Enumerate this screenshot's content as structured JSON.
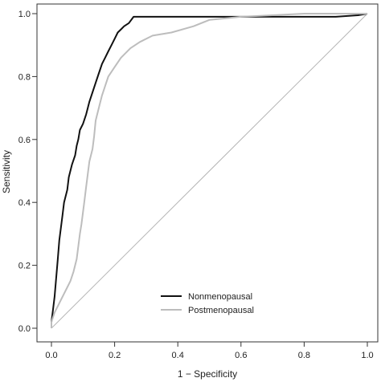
{
  "chart_data": {
    "type": "line",
    "title": "",
    "xlabel": "1 − Specificity",
    "ylabel": "Sensitivity",
    "xlim": [
      0,
      1
    ],
    "ylim": [
      0,
      1
    ],
    "x_ticks": [
      0.0,
      0.2,
      0.4,
      0.6,
      0.8,
      1.0
    ],
    "x_tick_labels": [
      "0.0",
      "0.2",
      "0.4",
      "0.6",
      "0.8",
      "1.0"
    ],
    "y_ticks": [
      0.0,
      0.2,
      0.4,
      0.6,
      0.8,
      1.0
    ],
    "y_tick_labels": [
      "0.0",
      "0.2",
      "0.4",
      "0.6",
      "0.8",
      "1.0"
    ],
    "grid": false,
    "legend_position": "bottom-center",
    "reference_line": {
      "from": [
        0,
        0
      ],
      "to": [
        1,
        1
      ],
      "color": "#b5b5b5"
    },
    "series": [
      {
        "name": "Nonmenopausal",
        "color": "#111111",
        "points": [
          [
            0.0,
            0.0
          ],
          [
            0.0,
            0.02
          ],
          [
            0.005,
            0.06
          ],
          [
            0.01,
            0.1
          ],
          [
            0.015,
            0.16
          ],
          [
            0.02,
            0.22
          ],
          [
            0.025,
            0.28
          ],
          [
            0.03,
            0.32
          ],
          [
            0.035,
            0.36
          ],
          [
            0.04,
            0.4
          ],
          [
            0.05,
            0.44
          ],
          [
            0.055,
            0.48
          ],
          [
            0.065,
            0.52
          ],
          [
            0.075,
            0.55
          ],
          [
            0.08,
            0.58
          ],
          [
            0.085,
            0.6
          ],
          [
            0.09,
            0.63
          ],
          [
            0.1,
            0.65
          ],
          [
            0.11,
            0.68
          ],
          [
            0.115,
            0.7
          ],
          [
            0.12,
            0.72
          ],
          [
            0.13,
            0.75
          ],
          [
            0.14,
            0.78
          ],
          [
            0.15,
            0.81
          ],
          [
            0.16,
            0.84
          ],
          [
            0.17,
            0.86
          ],
          [
            0.18,
            0.88
          ],
          [
            0.19,
            0.9
          ],
          [
            0.2,
            0.92
          ],
          [
            0.21,
            0.94
          ],
          [
            0.22,
            0.95
          ],
          [
            0.23,
            0.96
          ],
          [
            0.245,
            0.97
          ],
          [
            0.26,
            0.99
          ],
          [
            0.27,
            0.99
          ],
          [
            0.3,
            0.99
          ],
          [
            0.5,
            0.99
          ],
          [
            0.7,
            0.99
          ],
          [
            0.9,
            0.99
          ],
          [
            0.97,
            0.995
          ],
          [
            1.0,
            1.0
          ]
        ]
      },
      {
        "name": "Postmenopausal",
        "color": "#bdbdbd",
        "points": [
          [
            0.0,
            0.0
          ],
          [
            0.0,
            0.02
          ],
          [
            0.01,
            0.05
          ],
          [
            0.02,
            0.07
          ],
          [
            0.03,
            0.09
          ],
          [
            0.04,
            0.11
          ],
          [
            0.05,
            0.13
          ],
          [
            0.06,
            0.15
          ],
          [
            0.07,
            0.18
          ],
          [
            0.08,
            0.22
          ],
          [
            0.085,
            0.26
          ],
          [
            0.09,
            0.3
          ],
          [
            0.095,
            0.33
          ],
          [
            0.1,
            0.37
          ],
          [
            0.105,
            0.41
          ],
          [
            0.11,
            0.45
          ],
          [
            0.115,
            0.49
          ],
          [
            0.12,
            0.53
          ],
          [
            0.13,
            0.57
          ],
          [
            0.135,
            0.61
          ],
          [
            0.14,
            0.66
          ],
          [
            0.15,
            0.7
          ],
          [
            0.16,
            0.74
          ],
          [
            0.17,
            0.77
          ],
          [
            0.18,
            0.8
          ],
          [
            0.2,
            0.83
          ],
          [
            0.22,
            0.86
          ],
          [
            0.25,
            0.89
          ],
          [
            0.28,
            0.91
          ],
          [
            0.32,
            0.93
          ],
          [
            0.38,
            0.94
          ],
          [
            0.45,
            0.96
          ],
          [
            0.5,
            0.98
          ],
          [
            0.55,
            0.985
          ],
          [
            0.6,
            0.99
          ],
          [
            0.7,
            0.995
          ],
          [
            0.8,
            1.0
          ],
          [
            0.9,
            1.0
          ],
          [
            1.0,
            1.0
          ]
        ]
      }
    ]
  }
}
